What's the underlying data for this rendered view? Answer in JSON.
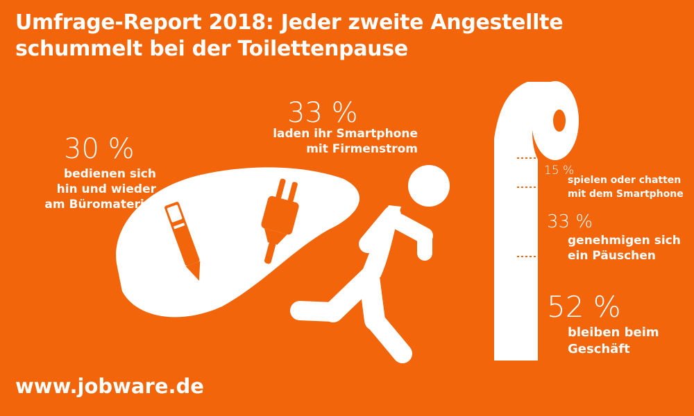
{
  "title": {
    "line1": "Umfrage-Report 2018: Jeder zweite Angestellte",
    "line2": "schummelt bei der Toilettenpause"
  },
  "stats": {
    "bueromaterial": {
      "percent": "30 %",
      "line1": "bedienen sich",
      "line2": "hin und wieder",
      "line3": "am Büromaterial"
    },
    "smartphone_laden": {
      "percent": "33 %",
      "line1": "laden ihr Smartphone",
      "line2": "mit Firmenstrom"
    },
    "spielen": {
      "percent": "15 %",
      "line1": "spielen oder chatten",
      "line2": "mit dem Smartphone"
    },
    "paeuschen": {
      "percent": "33 %",
      "line1": "genehmigen sich",
      "line2": "ein Päuschen"
    },
    "geschaeft": {
      "percent": "52 %",
      "line1": "bleiben beim",
      "line2": "Geschäft"
    }
  },
  "footer": {
    "url": "www.jobware.de"
  },
  "colors": {
    "background": "#f2650a",
    "foreground": "#ffffff"
  }
}
